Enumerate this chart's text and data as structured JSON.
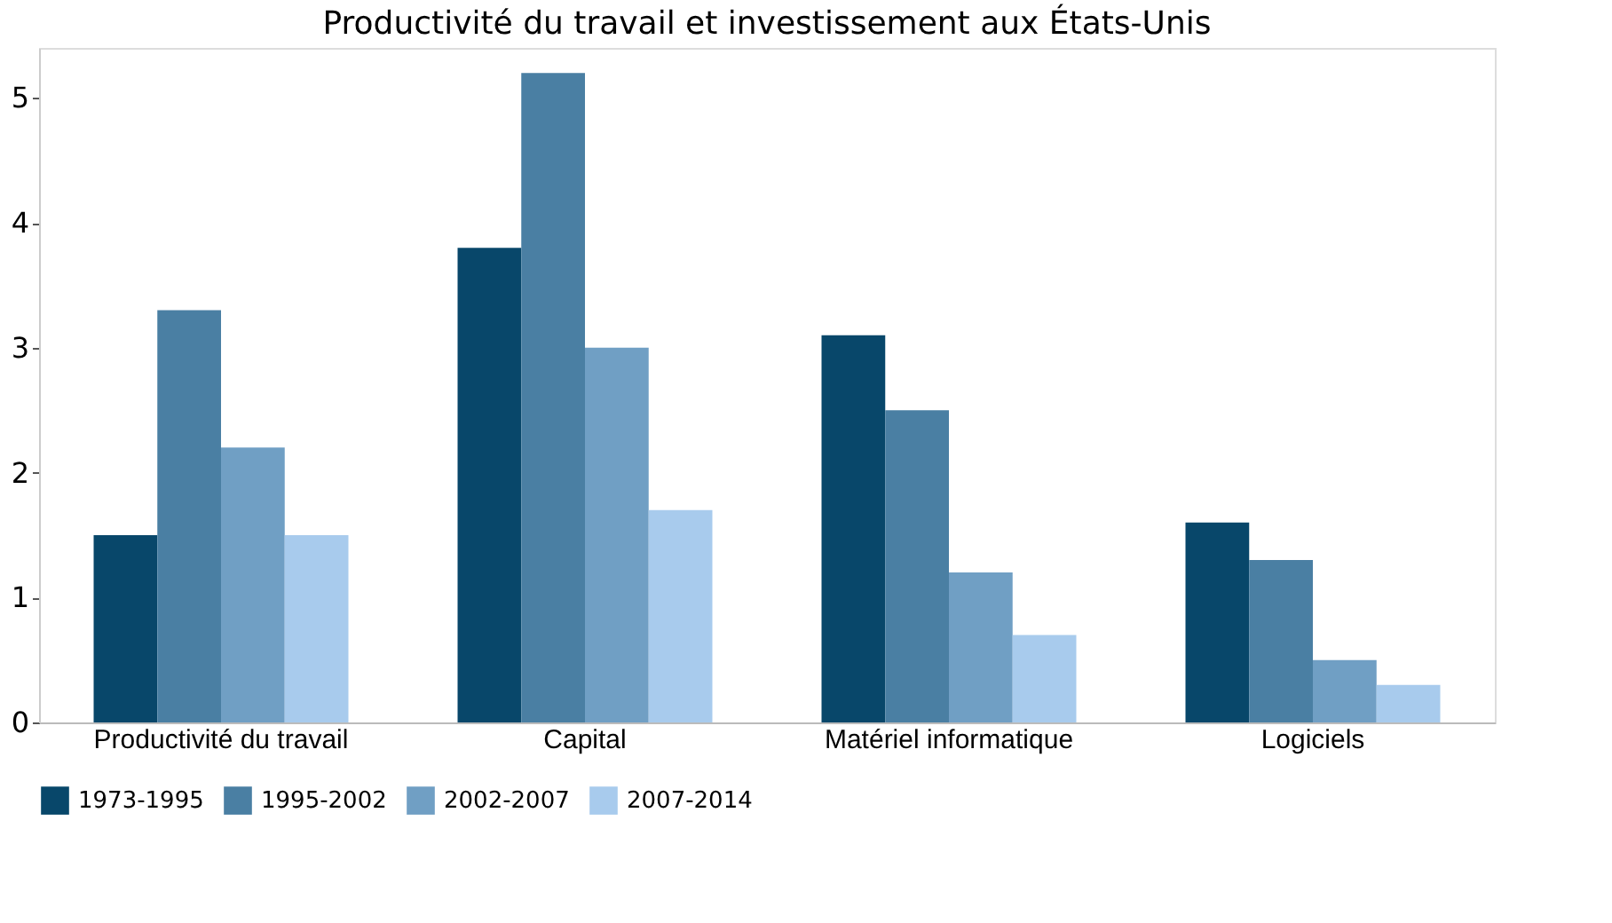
{
  "chart_data": {
    "type": "bar",
    "title": "Productivité du travail et investissement aux États-Unis",
    "categories": [
      "Productivité du travail",
      "Capital",
      "Matériel informatique",
      "Logiciels"
    ],
    "series": [
      {
        "name": "1973-1995",
        "color": "#08476a",
        "values": [
          1.5,
          3.8,
          3.1,
          1.6
        ]
      },
      {
        "name": "1995-2002",
        "color": "#4a7fa3",
        "values": [
          3.3,
          5.2,
          2.5,
          1.3
        ]
      },
      {
        "name": "2002-2007",
        "color": "#709fc4",
        "values": [
          2.2,
          3.0,
          1.2,
          0.5
        ]
      },
      {
        "name": "2007-2014",
        "color": "#a8cbed",
        "values": [
          1.5,
          1.7,
          0.7,
          0.3
        ]
      }
    ],
    "ylim": [
      0,
      5.4
    ],
    "yticks": [
      0,
      1,
      2,
      3,
      4,
      5
    ],
    "grid": false,
    "legend": "bottom"
  }
}
